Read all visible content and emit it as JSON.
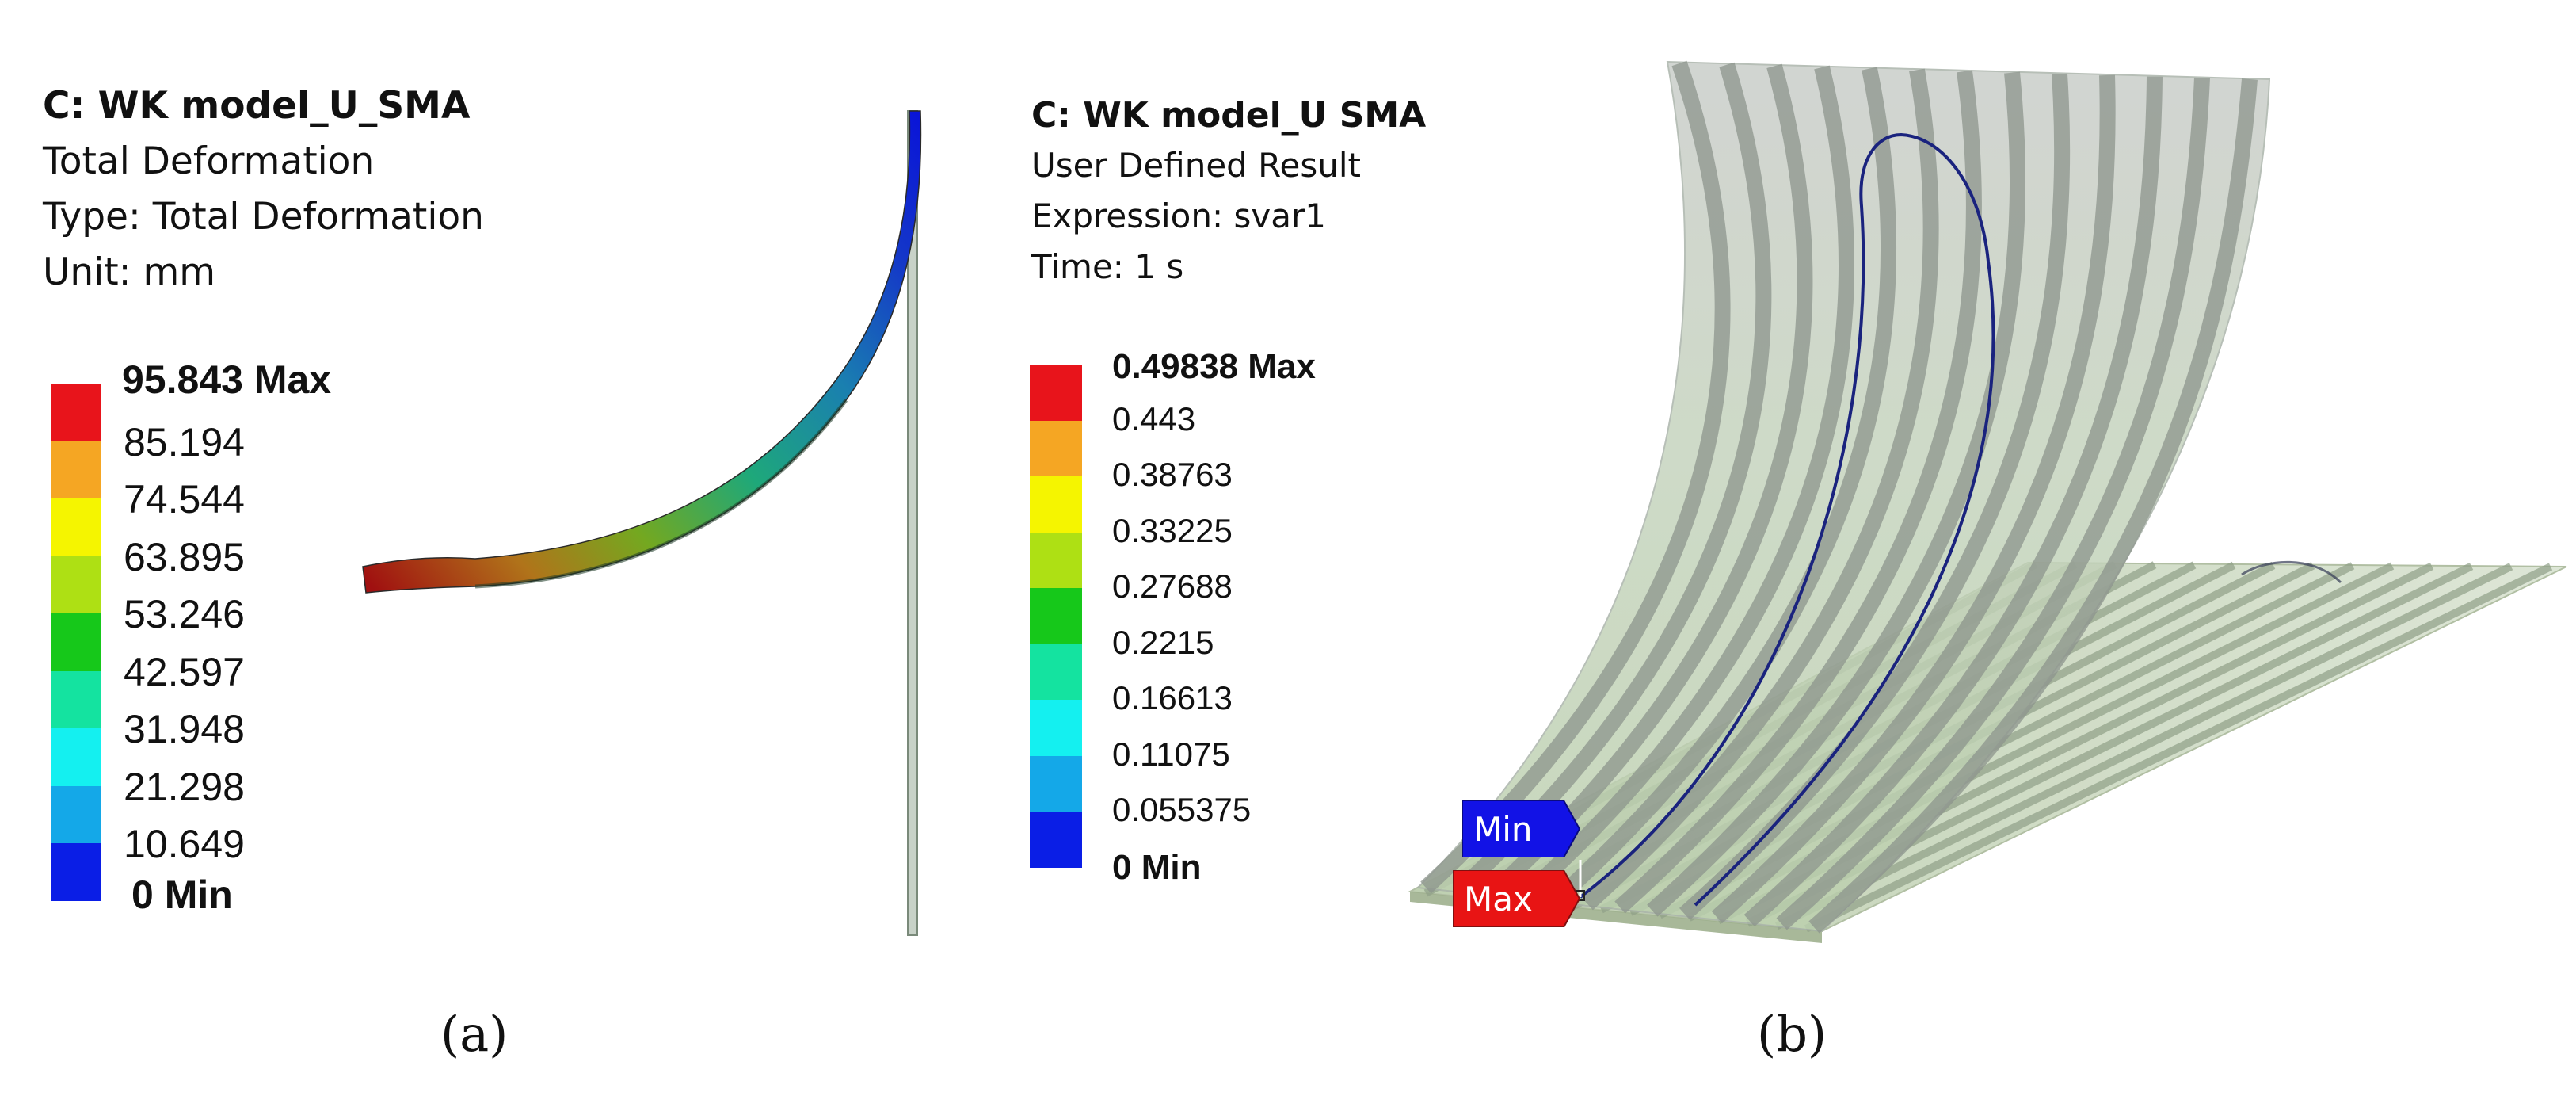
{
  "panel_a": {
    "model": "C: WK model_U_SMA",
    "result": "Total Deformation",
    "type": "Type: Total Deformation",
    "unit": "Unit: mm",
    "legend_max": "95.843 Max",
    "legend_min": "0 Min",
    "legend_values": [
      "85.194",
      "74.544",
      "63.895",
      "53.246",
      "42.597",
      "31.948",
      "21.298",
      "10.649"
    ],
    "colors": [
      "#e8141b",
      "#f5a623",
      "#f5f500",
      "#aee014",
      "#16c81a",
      "#14e3a0",
      "#14f0f0",
      "#14a8e8",
      "#0a1ee6"
    ],
    "label": "(a)"
  },
  "panel_b": {
    "model": "C: WK model_U SMA",
    "result": "User Defined Result",
    "expression": "Expression: svar1",
    "time": "Time: 1 s",
    "legend_max": "0.49838 Max",
    "legend_min": "0 Min",
    "legend_values": [
      "0.443",
      "0.38763",
      "0.33225",
      "0.27688",
      "0.2215",
      "0.16613",
      "0.11075",
      "0.055375"
    ],
    "colors": [
      "#e8141b",
      "#f5a623",
      "#f5f500",
      "#aee014",
      "#16c81a",
      "#14e3a0",
      "#14f0f0",
      "#14a8e8",
      "#0a1ee6"
    ],
    "min_tag": "Min",
    "max_tag": "Max",
    "label": "(b)"
  }
}
